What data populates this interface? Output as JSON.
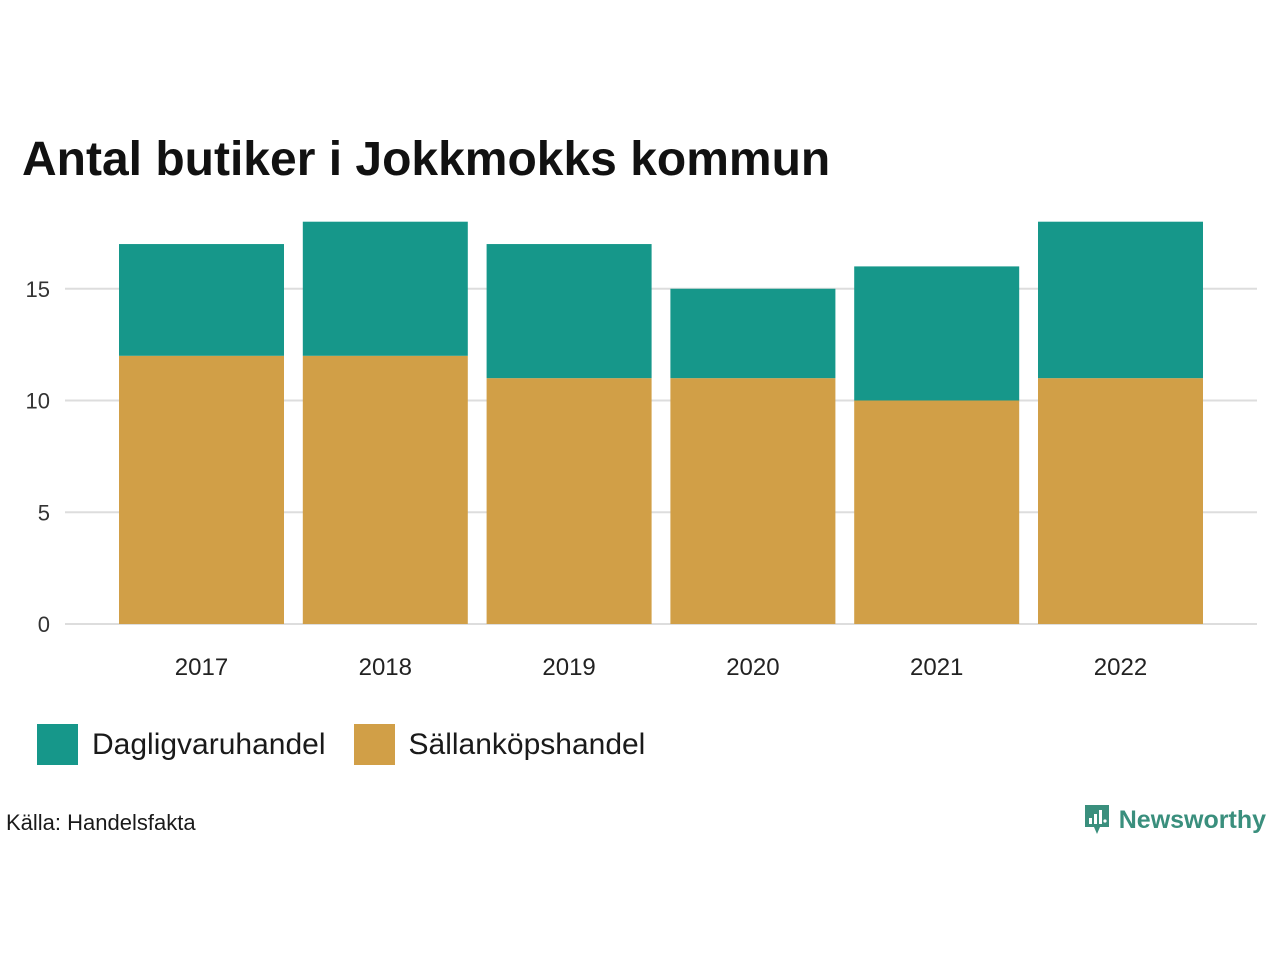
{
  "title": "Antal butiker i Jokkmokks kommun",
  "source": "Källa: Handelsfakta",
  "brand": "Newsworthy",
  "colors": {
    "daily": "#16978a",
    "durable": "#d19f47",
    "grid": "#dddddd",
    "brand": "#3a8f7d"
  },
  "chart_data": {
    "type": "bar",
    "stacked": true,
    "categories": [
      "2017",
      "2018",
      "2019",
      "2020",
      "2021",
      "2022"
    ],
    "series": [
      {
        "name": "Sällanköpshandel",
        "values": [
          12,
          12,
          11,
          11,
          10,
          11
        ]
      },
      {
        "name": "Dagligvaruhandel",
        "values": [
          5,
          6,
          6,
          4,
          6,
          7
        ]
      }
    ],
    "yticks": [
      0,
      5,
      10,
      15
    ],
    "ylim": [
      0,
      18
    ],
    "grid": true,
    "legend_position": "bottom-left"
  },
  "legend": [
    {
      "label": "Dagligvaruhandel",
      "color": "#16978a"
    },
    {
      "label": "Sällanköpshandel",
      "color": "#d19f47"
    }
  ]
}
